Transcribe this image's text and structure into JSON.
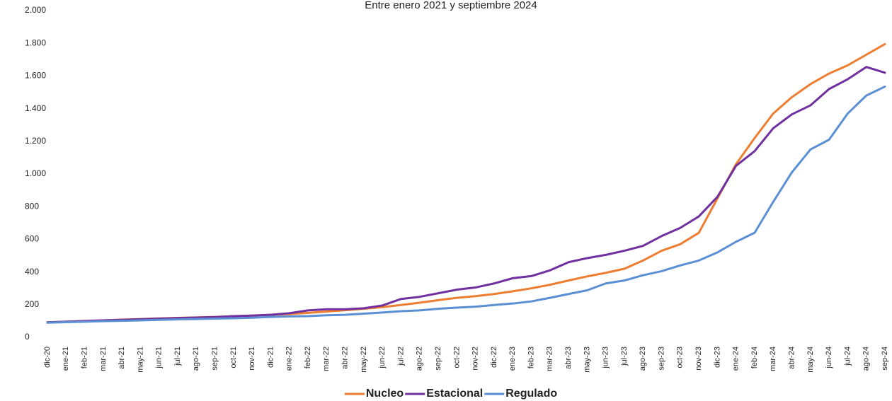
{
  "chart_data": {
    "type": "line",
    "subtitle": "Entre enero 2021 y septiembre 2024",
    "categories": [
      "dic-20",
      "ene-21",
      "feb-21",
      "mar-21",
      "abr-21",
      "may-21",
      "jun-21",
      "jul-21",
      "ago-21",
      "sep-21",
      "oct-21",
      "nov-21",
      "dic-21",
      "ene-22",
      "feb-22",
      "mar-22",
      "abr-22",
      "may-22",
      "jun-22",
      "jul-22",
      "ago-22",
      "sep-22",
      "oct-22",
      "nov-22",
      "dic-22",
      "ene-23",
      "feb-23",
      "mar-23",
      "abr-23",
      "may-23",
      "jun-23",
      "jul-23",
      "ago-23",
      "sep-23",
      "oct-23",
      "nov-23",
      "dic-23",
      "ene-24",
      "feb-24",
      "mar-24",
      "abr-24",
      "may-24",
      "jun-24",
      "jul-24",
      "ago-24",
      "sep-24"
    ],
    "series": [
      {
        "name": "Nucleo",
        "color": "#ed7d31",
        "values": [
          92,
          96,
          100,
          104,
          108,
          112,
          116,
          119,
          122,
          125,
          129,
          133,
          138,
          143,
          150,
          158,
          166,
          175,
          185,
          198,
          212,
          228,
          242,
          252,
          265,
          282,
          300,
          322,
          348,
          373,
          395,
          420,
          470,
          530,
          570,
          640,
          850,
          1060,
          1220,
          1370,
          1470,
          1550,
          1615,
          1665,
          1730,
          1795
        ]
      },
      {
        "name": "Estacional",
        "color": "#7030a0",
        "values": [
          92,
          96,
          100,
          104,
          107,
          111,
          115,
          118,
          121,
          124,
          130,
          133,
          138,
          148,
          165,
          172,
          172,
          178,
          195,
          235,
          248,
          270,
          292,
          305,
          330,
          362,
          375,
          410,
          460,
          485,
          505,
          530,
          560,
          620,
          670,
          740,
          860,
          1050,
          1140,
          1280,
          1365,
          1420,
          1520,
          1580,
          1655,
          1620
        ]
      },
      {
        "name": "Regulado",
        "color": "#5b8fd4",
        "values": [
          90,
          93,
          96,
          99,
          101,
          104,
          107,
          110,
          112,
          115,
          117,
          120,
          125,
          128,
          130,
          135,
          138,
          145,
          152,
          160,
          165,
          175,
          182,
          188,
          198,
          207,
          220,
          242,
          265,
          288,
          330,
          348,
          380,
          405,
          440,
          470,
          520,
          585,
          640,
          830,
          1010,
          1150,
          1210,
          1370,
          1480,
          1535
        ]
      }
    ],
    "ylim": [
      0,
      2000
    ],
    "yticks": [
      0,
      200,
      400,
      600,
      800,
      {
        "value": 1000,
        "label": "1.000"
      },
      {
        "value": 1200,
        "label": "1.200"
      },
      {
        "value": 1400,
        "label": "1.400"
      },
      {
        "value": 1600,
        "label": "1.600"
      },
      {
        "value": 1800,
        "label": "1.800"
      },
      {
        "value": 2000,
        "label": "2.000"
      }
    ],
    "grid": false,
    "legend": "bottom"
  }
}
